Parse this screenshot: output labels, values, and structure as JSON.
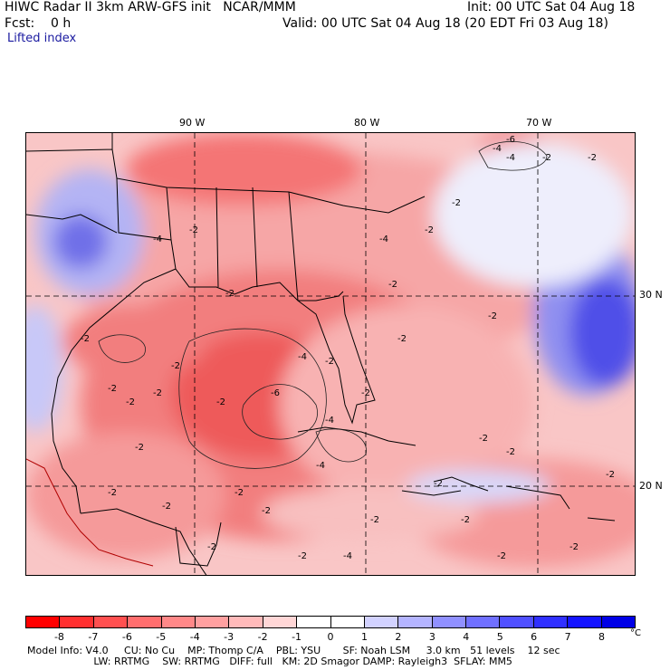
{
  "header": {
    "model_line": "HIWC Radar II 3km ARW-GFS init   NCAR/MMM",
    "init_line": "Init: 00 UTC Sat 04 Aug 18",
    "fcst_label": "Fcst:    0 h",
    "valid_line": "Valid: 00 UTC Sat 04 Aug 18 (20 EDT Fri 03 Aug 18)",
    "field_name": "Lifted index"
  },
  "map": {
    "longitude_labels": [
      "90 W",
      "80 W",
      "70 W"
    ],
    "latitude_labels": [
      "30 N",
      "20 N"
    ],
    "contour_labels": [
      "-6",
      "-4",
      "-4",
      "-2",
      "-2",
      "-2",
      "-2",
      "-2",
      "-4",
      "-2",
      "-4",
      "-2",
      "-2",
      "-2",
      "-6",
      "-4",
      "-4",
      "-2",
      "-2",
      "-2",
      "-2",
      "-2",
      "-2",
      "-4",
      "-2",
      "-2",
      "-2",
      "-2",
      "-2",
      "-2",
      "-2",
      "-2",
      "-2",
      "-4",
      "-2",
      "-2",
      "-2",
      "-2",
      "-2",
      "-2",
      "-2",
      "-2"
    ],
    "colors": {
      "strong_negative": "#ff2020",
      "negative": "#f06060",
      "weak_negative": "#f8b0b0",
      "neutral": "#ffffff",
      "weak_positive": "#c0c0f8",
      "positive": "#4040f0",
      "land_border": "#000000",
      "coast_mexico": "#b00000"
    }
  },
  "colorbar": {
    "ticks": [
      "-8",
      "-7",
      "-6",
      "-5",
      "-4",
      "-3",
      "-2",
      "-1",
      "0",
      "1",
      "2",
      "3",
      "4",
      "5",
      "6",
      "7",
      "8"
    ],
    "unit": "°C",
    "colors": [
      "#ff0000",
      "#ff3030",
      "#ff5050",
      "#ff6e6e",
      "#ff8888",
      "#ffa0a0",
      "#ffbaba",
      "#ffd6d6",
      "#ffffff",
      "#ffffff",
      "#d2d2ff",
      "#b4b4ff",
      "#9090ff",
      "#7070ff",
      "#5050ff",
      "#3030ff",
      "#1414ff",
      "#0000e6"
    ]
  },
  "model_info": {
    "line1": "Model Info: V4.0     CU: No Cu    MP: Thomp C/A    PBL: YSU       SF: Noah LSM     3.0 km   51 levels    12 sec",
    "line2": "                     LW: RRTMG    SW: RRTMG   DIFF: full   KM: 2D Smagor DAMP: Rayleigh3  SFLAY: MM5"
  }
}
